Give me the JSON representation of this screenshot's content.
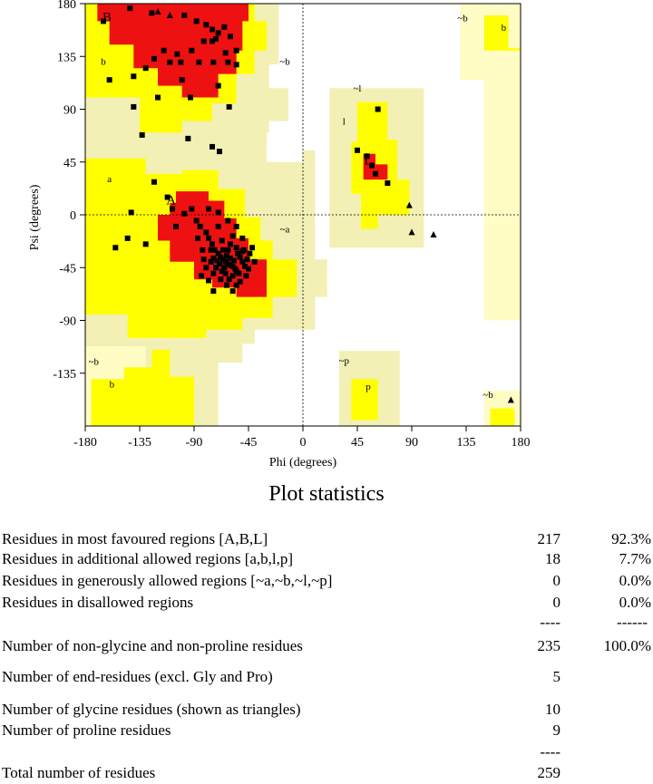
{
  "chart_data": {
    "type": "scatter",
    "xlabel": "Phi (degrees)",
    "ylabel": "Psi (degrees)",
    "xlim": [
      -180,
      180
    ],
    "ylim": [
      -180,
      180
    ],
    "xticks": [
      "-180",
      "-135",
      "-90",
      "-45",
      "0",
      "45",
      "90",
      "135",
      "180"
    ],
    "yticks": [
      "180",
      "135",
      "90",
      "45",
      "0",
      "-45",
      "-90",
      "-135"
    ],
    "region_colors": {
      "most_favoured": "#ee1111",
      "additional_allowed": "#ffff00",
      "generously_allowed": "#f2f0b4",
      "generously_allowed_alt": "#fffcc4",
      "disallowed": "#ffffff"
    },
    "region_labels": [
      {
        "text": "B",
        "x": -162,
        "y": 165
      },
      {
        "text": "b",
        "x": -165,
        "y": 128
      },
      {
        "text": "~b",
        "x": -15,
        "y": 128
      },
      {
        "text": "~l",
        "x": 45,
        "y": 105
      },
      {
        "text": "l",
        "x": 34,
        "y": 77
      },
      {
        "text": "L",
        "x": 54,
        "y": 43
      },
      {
        "text": "a",
        "x": -160,
        "y": 28
      },
      {
        "text": "A",
        "x": -109,
        "y": 9
      },
      {
        "text": "~a",
        "x": -15,
        "y": -15
      },
      {
        "text": "~b",
        "x": 132,
        "y": 165
      },
      {
        "text": "b",
        "x": 166,
        "y": 157
      },
      {
        "text": "~b",
        "x": -173,
        "y": -128
      },
      {
        "text": "b",
        "x": -158,
        "y": -147
      },
      {
        "text": "~p",
        "x": 34,
        "y": -127
      },
      {
        "text": "p",
        "x": 54,
        "y": -149
      },
      {
        "text": "~b",
        "x": 153,
        "y": -156
      }
    ],
    "non_glycine_points": [
      [
        -165,
        165
      ],
      [
        -143,
        176
      ],
      [
        -125,
        172
      ],
      [
        -98,
        170
      ],
      [
        -88,
        165
      ],
      [
        -80,
        162
      ],
      [
        -75,
        158
      ],
      [
        -70,
        155
      ],
      [
        -65,
        160
      ],
      [
        -60,
        152
      ],
      [
        -72,
        150
      ],
      [
        -82,
        148
      ],
      [
        -92,
        140
      ],
      [
        -104,
        137
      ],
      [
        -115,
        140
      ],
      [
        -123,
        133
      ],
      [
        -130,
        125
      ],
      [
        -140,
        118
      ],
      [
        -160,
        115
      ],
      [
        -110,
        130
      ],
      [
        -100,
        115
      ],
      [
        -120,
        100
      ],
      [
        -93,
        100
      ],
      [
        -74,
        130
      ],
      [
        -64,
        138
      ],
      [
        -62,
        130
      ],
      [
        -55,
        128
      ],
      [
        -70,
        110
      ],
      [
        -75,
        148
      ],
      [
        -86,
        130
      ],
      [
        -101,
        130
      ],
      [
        -55,
        140
      ],
      [
        -140,
        92
      ],
      [
        -133,
        68
      ],
      [
        -95,
        65
      ],
      [
        -75,
        58
      ],
      [
        -69,
        54
      ],
      [
        -61,
        92
      ],
      [
        -123,
        28
      ],
      [
        -142,
        2
      ],
      [
        -145,
        -20
      ],
      [
        -155,
        -28
      ],
      [
        -130,
        -25
      ],
      [
        -112,
        15
      ],
      [
        -108,
        5
      ],
      [
        -98,
        1
      ],
      [
        -105,
        -10
      ],
      [
        -92,
        5
      ],
      [
        -88,
        -5
      ],
      [
        -85,
        -10
      ],
      [
        -80,
        -15
      ],
      [
        -78,
        -20
      ],
      [
        -75,
        -25
      ],
      [
        -73,
        -30
      ],
      [
        -70,
        -33
      ],
      [
        -68,
        -36
      ],
      [
        -66,
        -38
      ],
      [
        -64,
        -40
      ],
      [
        -62,
        -42
      ],
      [
        -60,
        -43
      ],
      [
        -58,
        -44
      ],
      [
        -56,
        -46
      ],
      [
        -55,
        -48
      ],
      [
        -53,
        -50
      ],
      [
        -52,
        -36
      ],
      [
        -63,
        -35
      ],
      [
        -65,
        -45
      ],
      [
        -67,
        -48
      ],
      [
        -69,
        -42
      ],
      [
        -71,
        -39
      ],
      [
        -74,
        -37
      ],
      [
        -76,
        -40
      ],
      [
        -60,
        -37
      ],
      [
        -57,
        -39
      ],
      [
        -50,
        -40
      ],
      [
        -48,
        -44
      ],
      [
        -46,
        -38
      ],
      [
        -50,
        -31
      ],
      [
        -55,
        -28
      ],
      [
        -60,
        -25
      ],
      [
        -62,
        -30
      ],
      [
        -58,
        -52
      ],
      [
        -61,
        -55
      ],
      [
        -64,
        -50
      ],
      [
        -72,
        -45
      ],
      [
        -76,
        -30
      ],
      [
        -66,
        -30
      ],
      [
        -54,
        -33
      ],
      [
        -49,
        -30
      ],
      [
        -44,
        -33
      ],
      [
        -42,
        -28
      ],
      [
        -52,
        -57
      ],
      [
        -55,
        -60
      ],
      [
        -68,
        -55
      ],
      [
        -74,
        -50
      ],
      [
        -80,
        -45
      ],
      [
        -82,
        -38
      ],
      [
        -67,
        -22
      ],
      [
        -58,
        -18
      ],
      [
        -50,
        -20
      ],
      [
        -63,
        -60
      ],
      [
        -47,
        -52
      ],
      [
        -45,
        -46
      ],
      [
        -83,
        -30
      ],
      [
        -87,
        -20
      ],
      [
        -78,
        5
      ],
      [
        -70,
        2
      ],
      [
        -62,
        -5
      ],
      [
        -55,
        -10
      ],
      [
        -74,
        -65
      ],
      [
        -78,
        -56
      ],
      [
        -84,
        -52
      ],
      [
        -58,
        -65
      ],
      [
        -40,
        -40
      ],
      [
        -70,
        -10
      ],
      [
        45,
        55
      ],
      [
        53,
        50
      ],
      [
        62,
        90
      ],
      [
        70,
        27
      ],
      [
        57,
        42
      ],
      [
        60,
        35
      ]
    ],
    "glycine_points": [
      [
        -120,
        173
      ],
      [
        -110,
        170
      ],
      [
        88,
        8
      ],
      [
        90,
        -15
      ],
      [
        108,
        -17
      ],
      [
        172,
        -158
      ]
    ]
  },
  "stats": {
    "title": "Plot statistics",
    "rows": [
      {
        "label": "Residues in most favoured regions  [A,B,L]",
        "count": "217",
        "pct": "92.3%"
      },
      {
        "label": "Residues in additional allowed regions  [a,b,l,p]",
        "count": "18",
        "pct": "7.7%"
      },
      {
        "label": "Residues in generously allowed regions  [~a,~b,~l,~p]",
        "count": "0",
        "pct": "0.0%"
      },
      {
        "label": "Residues in disallowed regions",
        "count": "0",
        "pct": "0.0%"
      }
    ],
    "dash_count": "----",
    "dash_pct": "------",
    "nonglypro": {
      "label": "Number of non-glycine and non-proline residues",
      "count": "235",
      "pct": "100.0%"
    },
    "end": {
      "label": "Number of end-residues (excl. Gly and Pro)",
      "count": "5"
    },
    "gly": {
      "label": "Number of glycine residues (shown as triangles)",
      "count": "10"
    },
    "pro": {
      "label": "Number of proline residues",
      "count": "9"
    },
    "dash_total": "----",
    "total": {
      "label": "Total number of residues",
      "count": "259"
    }
  }
}
